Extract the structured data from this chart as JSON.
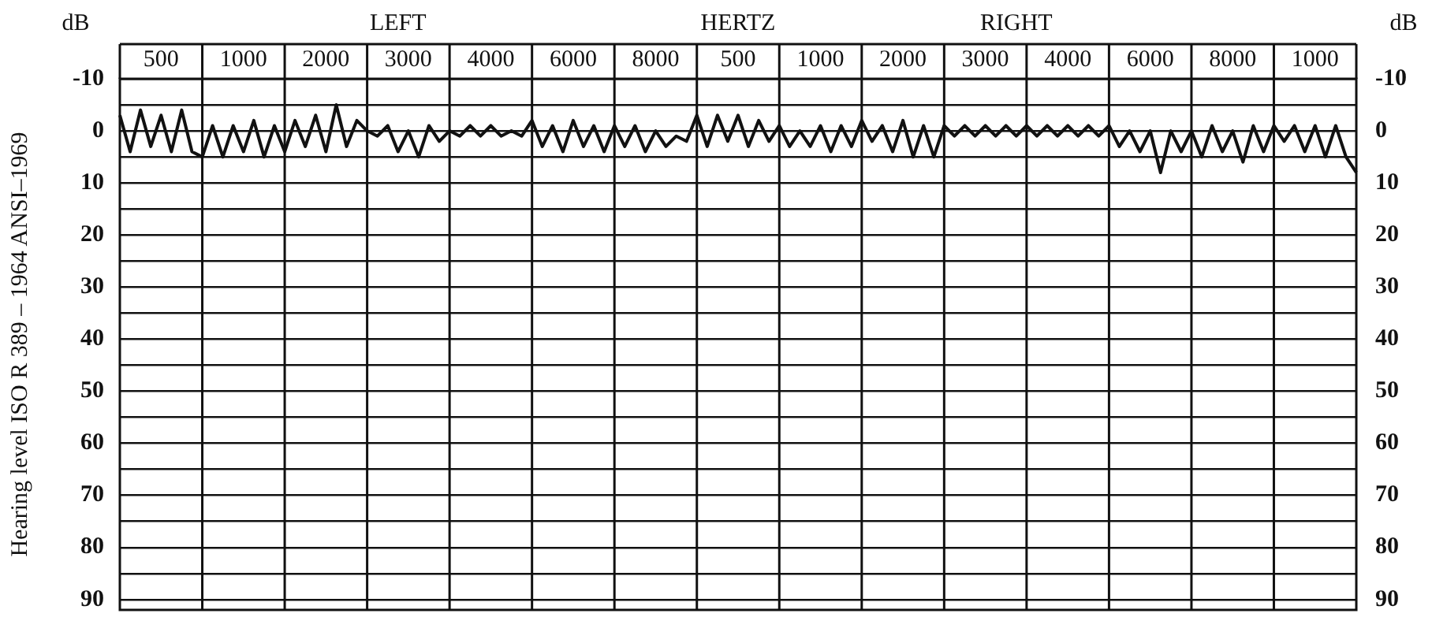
{
  "chart_data": {
    "type": "line",
    "xlabel": "HERTZ",
    "ylabel": "Hearing level ISO R 389 – 1964 ANSI–1969",
    "y2label": "dB",
    "annotations": [
      "dB",
      "LEFT",
      "RIGHT"
    ],
    "categories": [
      null,
      null,
      null,
      null,
      "500",
      null,
      null,
      null,
      null,
      null,
      null,
      null,
      "1000",
      null,
      null,
      null,
      null,
      null,
      null,
      null,
      "2000",
      null,
      null,
      null,
      null,
      null,
      null,
      null,
      "3000",
      null,
      null,
      null,
      null,
      null,
      null,
      null,
      "4000",
      null,
      null,
      null,
      null,
      null,
      null,
      null,
      "6000",
      null,
      null,
      null,
      null,
      null,
      null,
      null,
      "8000",
      null,
      null,
      null,
      null,
      null,
      null,
      null,
      "500",
      null,
      null,
      null,
      null,
      null,
      null,
      null,
      "1000",
      null,
      null,
      null,
      null,
      null,
      null,
      null,
      "2000",
      null,
      null,
      null,
      null,
      null,
      null,
      null,
      "3000",
      null,
      null,
      null,
      null,
      null,
      null,
      null,
      "4000",
      null,
      null,
      null,
      null,
      null,
      null,
      null,
      "6000",
      null,
      null,
      null,
      null,
      null,
      null,
      null,
      "8000",
      null,
      null,
      null,
      null,
      null,
      null,
      null,
      "1000",
      null,
      null,
      null,
      null
    ],
    "ylim": [
      92,
      -10
    ],
    "yticks": [
      -10,
      {
        "value": -5,
        "label": null
      },
      0,
      {
        "value": 5,
        "label": null
      },
      10,
      {
        "value": 15,
        "label": null
      },
      20,
      {
        "value": 25,
        "label": null
      },
      30,
      {
        "value": 35,
        "label": null
      },
      40,
      {
        "value": 45,
        "label": null
      },
      50,
      {
        "value": 55,
        "label": null
      },
      60,
      {
        "value": 65,
        "label": null
      },
      70,
      {
        "value": 75,
        "label": null
      },
      80,
      {
        "value": 85,
        "label": null
      },
      90
    ],
    "y2lim": [
      92,
      -10
    ],
    "y2ticks": [
      -10,
      0,
      10,
      20,
      30,
      40,
      50,
      60,
      70,
      80,
      90
    ],
    "grid": true,
    "series": [
      {
        "color": "#111111",
        "values": [
          -3,
          4,
          -4,
          3,
          -3,
          4,
          -4,
          4,
          5,
          -1,
          5,
          -1,
          4,
          -2,
          5,
          -1,
          4,
          -2,
          3,
          -3,
          4,
          -5,
          3,
          -2,
          0,
          1,
          -1,
          4,
          0,
          5,
          -1,
          2,
          0,
          1,
          -1,
          1,
          -1,
          1,
          0,
          1,
          -2,
          3,
          -1,
          4,
          -2,
          3,
          -1,
          4,
          -1,
          3,
          -1,
          4,
          0,
          3,
          1,
          2,
          -3,
          3,
          -3,
          2,
          -3,
          3,
          -2,
          2,
          -1,
          3,
          0,
          3,
          -1,
          4,
          -1,
          3,
          -2,
          2,
          -1,
          4,
          -2,
          5,
          -1,
          5,
          -1,
          1,
          -1,
          1,
          -1,
          1,
          -1,
          1,
          -1,
          1,
          -1,
          1,
          -1,
          1,
          -1,
          1,
          -1,
          3,
          0,
          4,
          0,
          8,
          0,
          4,
          0,
          5,
          -1,
          4,
          0,
          6,
          -1,
          4,
          -1,
          2,
          -1,
          4,
          -1,
          5,
          -1,
          5,
          8
        ]
      }
    ]
  }
}
